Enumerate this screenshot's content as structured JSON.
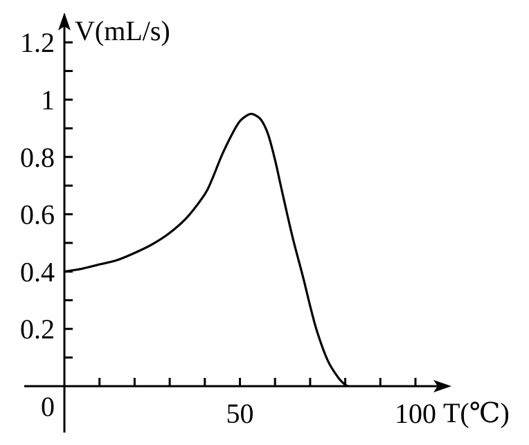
{
  "chart_data": {
    "type": "line",
    "title": "",
    "xlabel": "T(℃)",
    "ylabel": "V(mL/s)",
    "origin_label": "0",
    "xlim": [
      0,
      108
    ],
    "ylim": [
      0,
      1.27
    ],
    "x_ticks": [
      10,
      20,
      30,
      40,
      50,
      60,
      70,
      80,
      90,
      100
    ],
    "x_tick_labels": [
      {
        "value": 50,
        "label": "50"
      },
      {
        "value": 100,
        "label": "100"
      }
    ],
    "y_ticks": [
      0.1,
      0.2,
      0.3,
      0.4,
      0.5,
      0.6,
      0.7,
      0.8,
      0.9,
      1.0,
      1.1,
      1.2
    ],
    "y_tick_labels": [
      {
        "value": 0.2,
        "label": "0.2"
      },
      {
        "value": 0.4,
        "label": "0.4"
      },
      {
        "value": 0.6,
        "label": "0.6"
      },
      {
        "value": 0.8,
        "label": "0.8"
      },
      {
        "value": 1.0,
        "label": "1"
      },
      {
        "value": 1.2,
        "label": "1.2"
      }
    ],
    "grid": false,
    "series": [
      {
        "color": "#000000",
        "x": [
          0,
          5,
          10,
          15,
          20,
          25,
          30,
          35,
          40,
          42,
          45,
          48,
          50,
          52,
          53,
          54,
          56,
          58,
          60,
          62,
          65,
          68,
          70,
          72,
          75,
          78,
          80,
          81
        ],
        "y": [
          0.4,
          0.41,
          0.425,
          0.44,
          0.465,
          0.495,
          0.535,
          0.59,
          0.67,
          0.72,
          0.81,
          0.885,
          0.925,
          0.945,
          0.95,
          0.948,
          0.93,
          0.88,
          0.79,
          0.68,
          0.52,
          0.38,
          0.28,
          0.19,
          0.09,
          0.03,
          0.005,
          0.0
        ]
      }
    ]
  }
}
